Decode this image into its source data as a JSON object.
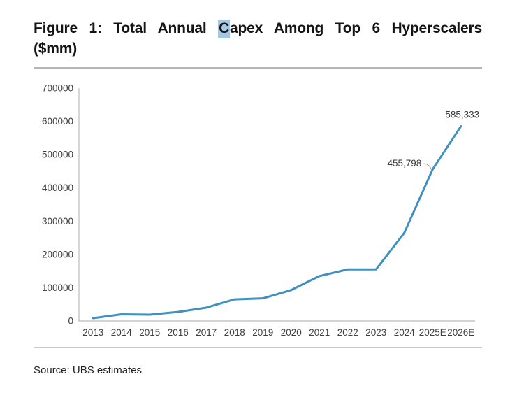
{
  "title": {
    "before_highlight": "Figure 1: Total Annual ",
    "highlight": "C",
    "after_highlight": "apex Among Top 6 Hyperscalers",
    "line2": "($mm)"
  },
  "source": "Source: UBS estimates",
  "colors": {
    "line": "#3f8fc0",
    "axis": "#c6c6c6",
    "tick_text": "#3f3f3f",
    "annotation_text": "#3a3a3a",
    "leader": "#9a9a9a",
    "highlight_bg": "#a5c6e4",
    "rule_top": "#b5b5b5",
    "rule_bottom": "#cccccc",
    "title_text": "#141414"
  },
  "chart_data": {
    "type": "line",
    "title": "Total Annual Capex Among Top 6 Hyperscalers ($mm)",
    "categories": [
      "2013",
      "2014",
      "2015",
      "2016",
      "2017",
      "2018",
      "2019",
      "2020",
      "2021",
      "2022",
      "2023",
      "2024",
      "2025E",
      "2026E"
    ],
    "values": [
      8500,
      20000,
      19000,
      27000,
      40000,
      65000,
      68000,
      93000,
      135000,
      155000,
      155000,
      265000,
      455798,
      585333
    ],
    "xlabel": "",
    "ylabel": "",
    "ylim": [
      0,
      700000
    ],
    "ytick_labels": [
      "0",
      "100000",
      "200000",
      "300000",
      "400000",
      "500000",
      "600000",
      "700000"
    ],
    "grid": false,
    "legend": false,
    "annotations": [
      {
        "category": "2025E",
        "label": "455,798",
        "placement": "left-leader"
      },
      {
        "category": "2026E",
        "label": "585,333",
        "placement": "above"
      }
    ]
  }
}
